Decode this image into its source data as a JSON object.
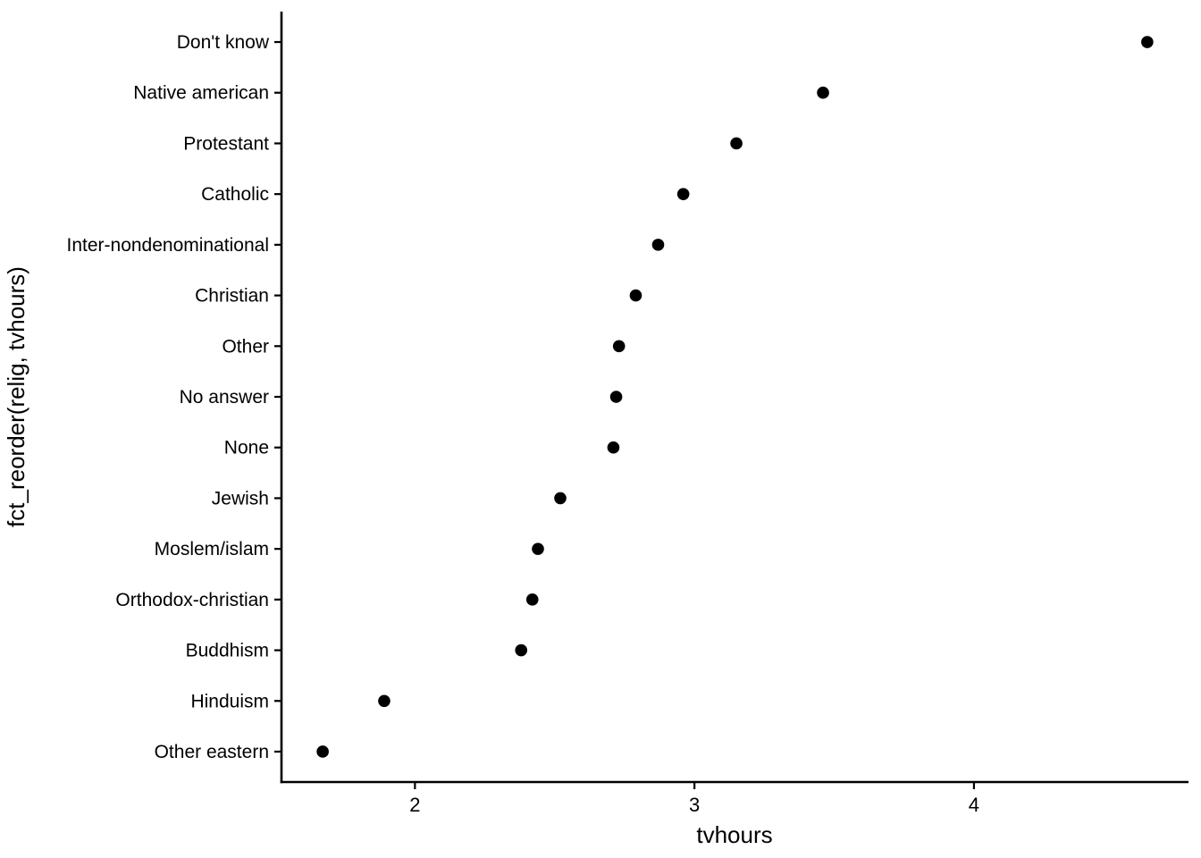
{
  "chart_data": {
    "type": "scatter",
    "subtype": "cleveland-dot-plot",
    "title": "",
    "xlabel": "tvhours",
    "ylabel": "fct_reorder(relig, tvhours)",
    "categories": [
      "Don't know",
      "Native american",
      "Protestant",
      "Catholic",
      "Inter-nondenominational",
      "Christian",
      "Other",
      "No answer",
      "None",
      "Jewish",
      "Moslem/islam",
      "Orthodox-christian",
      "Buddhism",
      "Hinduism",
      "Other eastern"
    ],
    "values": [
      4.62,
      3.46,
      3.15,
      2.96,
      2.87,
      2.79,
      2.73,
      2.72,
      2.71,
      2.52,
      2.44,
      2.42,
      2.38,
      1.89,
      1.67
    ],
    "x_ticks": [
      2,
      3,
      4
    ],
    "xlim": [
      1.52,
      4.77
    ],
    "grid": false,
    "legend_position": "none",
    "point_color": "#000000",
    "axis_color": "#000000",
    "background_color": "#ffffff"
  }
}
